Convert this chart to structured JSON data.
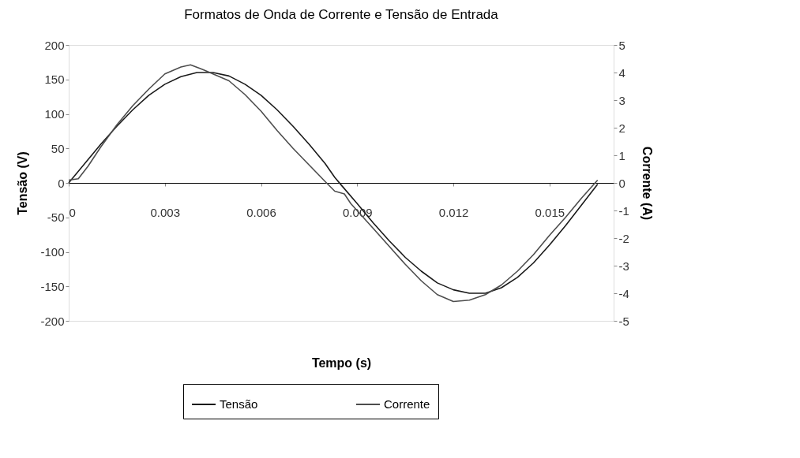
{
  "chart_data": {
    "type": "line",
    "title": "Formatos de Onda de Corrente e Tensão de Entrada",
    "xlabel": "Tempo (s)",
    "ylabel": "Tensão (V)",
    "y2label": "Corrente (A)",
    "xlim": [
      0,
      0.017
    ],
    "xticks": [
      0,
      0.003,
      0.006,
      0.009,
      0.012,
      0.015
    ],
    "ylim": [
      -200,
      200
    ],
    "yticks": [
      -200,
      -150,
      -100,
      -50,
      0,
      50,
      100,
      150,
      200
    ],
    "y2lim": [
      -5,
      5
    ],
    "y2ticks": [
      -5,
      -4,
      -3,
      -2,
      -1,
      0,
      1,
      2,
      3,
      4,
      5
    ],
    "grid": false,
    "legend": "bottom",
    "marker": "none",
    "line_style": "solid",
    "series": [
      {
        "name": "Tensão",
        "color": "#1a1a1a",
        "x": [
          0,
          0.0005,
          0.001,
          0.0015,
          0.002,
          0.0025,
          0.003,
          0.0035,
          0.004,
          0.0045,
          0.005,
          0.0055,
          0.006,
          0.0065,
          0.007,
          0.0075,
          0.008,
          0.0083,
          0.0085,
          0.009,
          0.0095,
          0.01,
          0.0105,
          0.011,
          0.0115,
          0.012,
          0.0125,
          0.013,
          0.0135,
          0.014,
          0.0145,
          0.015,
          0.0155,
          0.016,
          0.0165
        ],
        "values": [
          0,
          28,
          56,
          82,
          106,
          127,
          143,
          154,
          160,
          160,
          155,
          143,
          127,
          106,
          82,
          56,
          28,
          8,
          -3,
          -30,
          -58,
          -84,
          -108,
          -128,
          -145,
          -155,
          -160,
          -160,
          -152,
          -137,
          -116,
          -90,
          -62,
          -32,
          -2
        ]
      },
      {
        "name": "Corrente",
        "color": "#4d4d4d",
        "axis": "y2",
        "x": [
          0,
          0.0003,
          0.0006,
          0.001,
          0.0015,
          0.002,
          0.0025,
          0.003,
          0.0035,
          0.0038,
          0.0042,
          0.005,
          0.0055,
          0.006,
          0.0065,
          0.007,
          0.0075,
          0.008,
          0.0083,
          0.0086,
          0.0088,
          0.0095,
          0.01,
          0.0105,
          0.011,
          0.0115,
          0.012,
          0.0125,
          0.013,
          0.0135,
          0.014,
          0.0145,
          0.015,
          0.0155,
          0.016,
          0.0165
        ],
        "values": [
          0.1,
          0.15,
          0.6,
          1.3,
          2.1,
          2.8,
          3.4,
          3.95,
          4.2,
          4.28,
          4.1,
          3.7,
          3.2,
          2.6,
          1.9,
          1.25,
          0.65,
          0.05,
          -0.3,
          -0.4,
          -0.75,
          -1.65,
          -2.3,
          -2.95,
          -3.55,
          -4.05,
          -4.3,
          -4.25,
          -4.05,
          -3.7,
          -3.2,
          -2.6,
          -1.9,
          -1.25,
          -0.55,
          0.1
        ]
      }
    ]
  }
}
